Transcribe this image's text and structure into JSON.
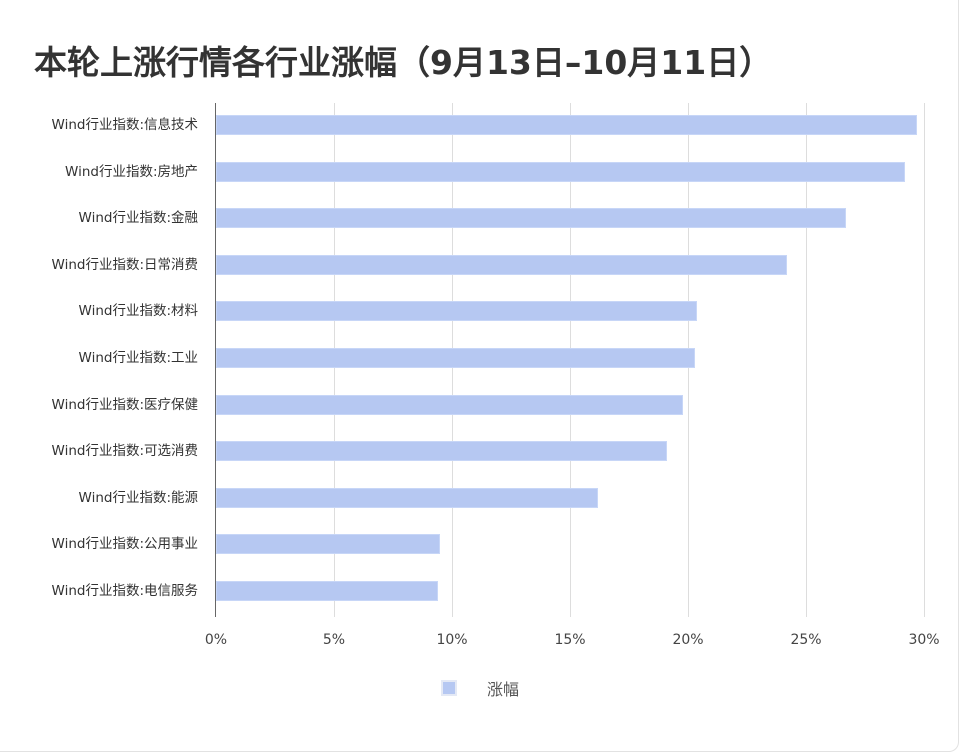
{
  "title": "本轮上涨行情各行业涨幅（9月13日–10月11日）",
  "legend": {
    "label": "涨幅",
    "color": "#b6c8f2"
  },
  "axis": {
    "ticks": [
      "0%",
      "5%",
      "10%",
      "15%",
      "20%",
      "25%",
      "30%"
    ]
  },
  "chart_data": {
    "type": "bar",
    "orientation": "horizontal",
    "title": "本轮上涨行情各行业涨幅（9月13日–10月11日）",
    "xlabel": "",
    "ylabel": "",
    "categories": [
      "Wind行业指数:信息技术",
      "Wind行业指数:房地产",
      "Wind行业指数:金融",
      "Wind行业指数:日常消费",
      "Wind行业指数:材料",
      "Wind行业指数:工业",
      "Wind行业指数:医疗保健",
      "Wind行业指数:可选消费",
      "Wind行业指数:能源",
      "Wind行业指数:公用事业",
      "Wind行业指数:电信服务"
    ],
    "series": [
      {
        "name": "涨幅",
        "values": [
          29.7,
          29.2,
          26.7,
          24.2,
          20.4,
          20.3,
          19.8,
          19.1,
          16.2,
          9.5,
          9.4
        ],
        "color": "#b6c8f2"
      }
    ],
    "xlim": [
      0,
      30
    ],
    "x_ticks": [
      "0%",
      "5%",
      "10%",
      "15%",
      "20%",
      "25%",
      "30%"
    ],
    "grid": true,
    "legend_position": "bottom"
  }
}
